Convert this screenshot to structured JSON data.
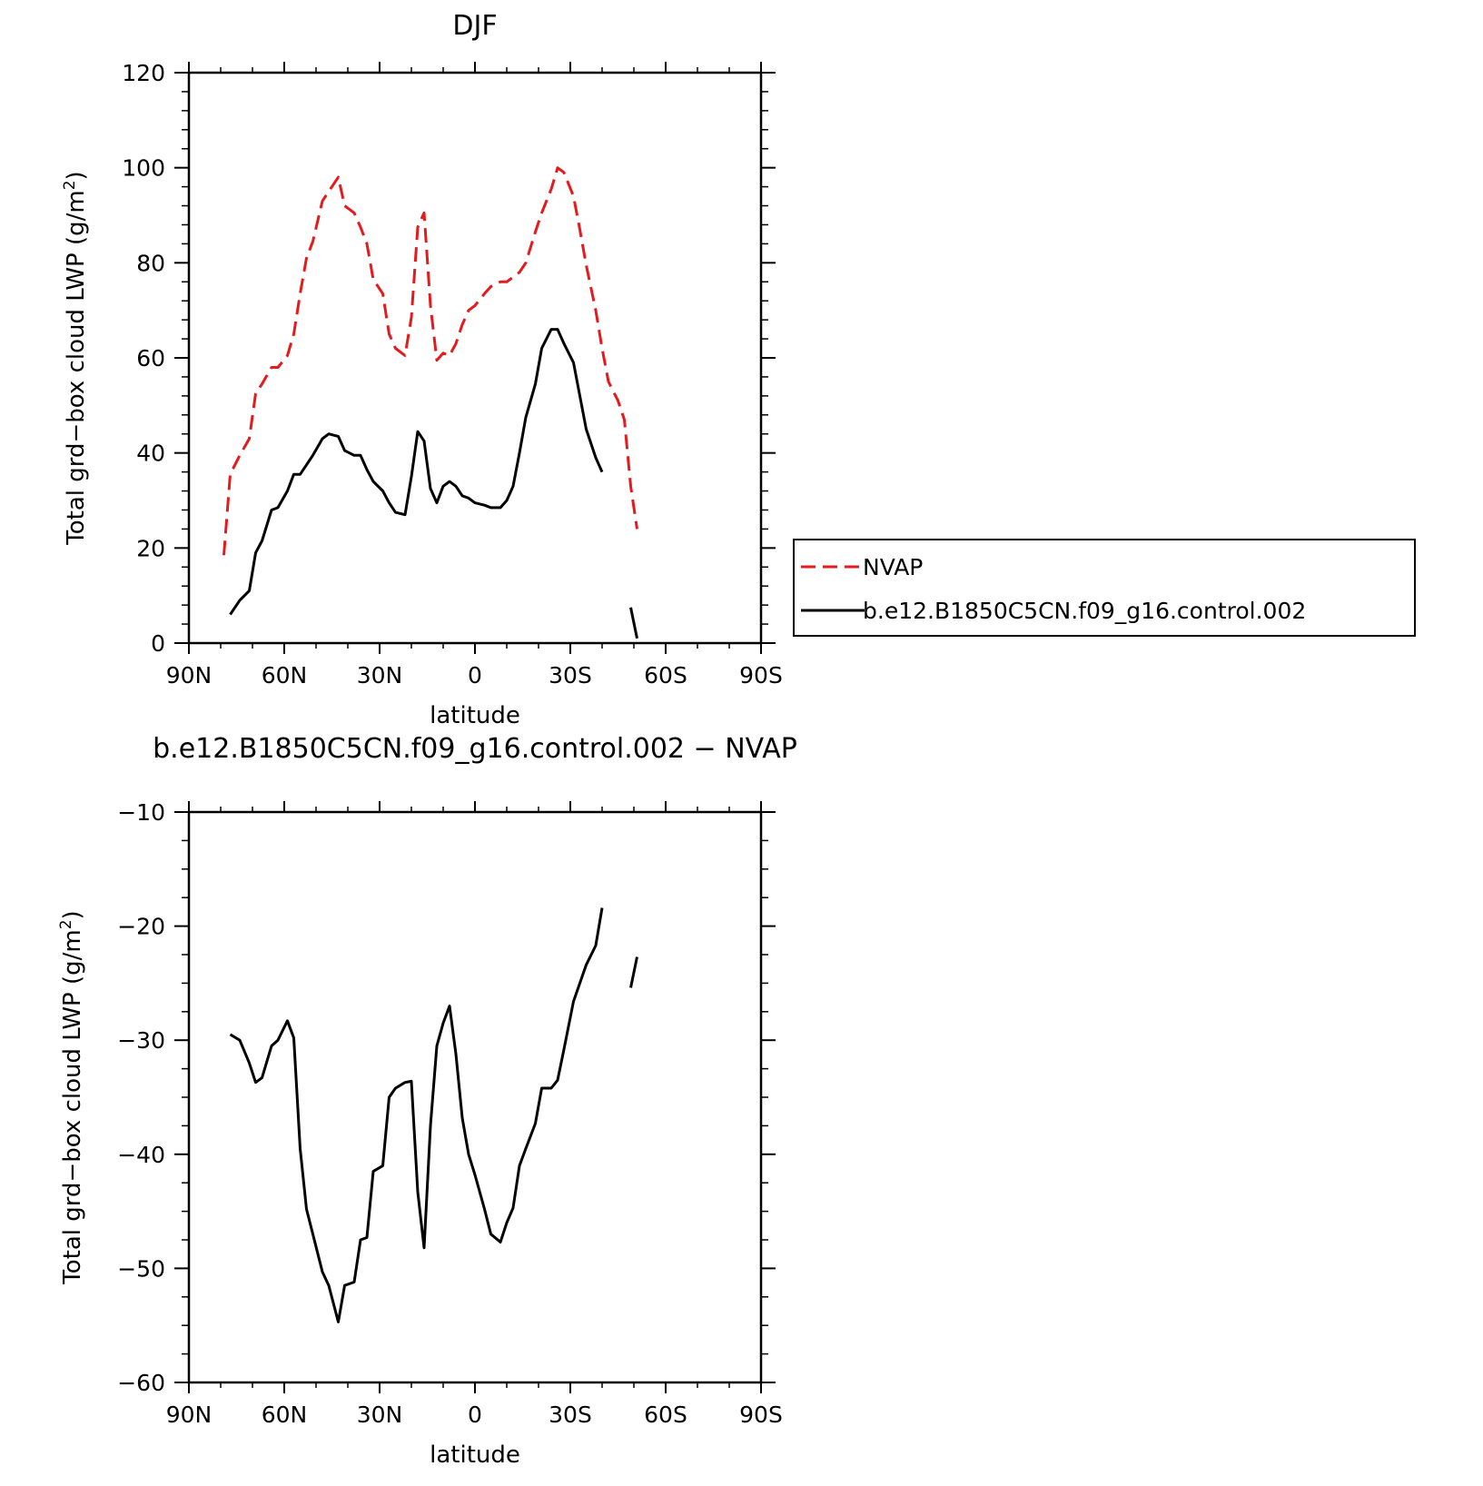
{
  "chart_data": [
    {
      "type": "line",
      "title": "DJF",
      "xlabel": "latitude",
      "ylabel": "Total grd−box cloud LWP (g/m",
      "ylabel_sup": "2",
      "ylabel_tail": ")",
      "xlim": [
        90,
        -90
      ],
      "ylim": [
        0,
        120
      ],
      "yticks": [
        {
          "value": 0,
          "label": "0"
        },
        {
          "value": 20,
          "label": "20"
        },
        {
          "value": 40,
          "label": "40"
        },
        {
          "value": 60,
          "label": "60"
        },
        {
          "value": 80,
          "label": "80"
        },
        {
          "value": 100,
          "label": "100"
        },
        {
          "value": 120,
          "label": "120"
        }
      ],
      "xticks": [
        {
          "value": 90,
          "label": "90N"
        },
        {
          "value": 60,
          "label": "60N"
        },
        {
          "value": 30,
          "label": "30N"
        },
        {
          "value": 0,
          "label": "0"
        },
        {
          "value": -30,
          "label": "30S"
        },
        {
          "value": -60,
          "label": "60S"
        },
        {
          "value": -90,
          "label": "90S"
        }
      ],
      "legend": [
        {
          "name": "NVAP",
          "color": "#e41a1c",
          "dash": true
        },
        {
          "name": "b.e12.B1850C5CN.f09_g16.control.002",
          "color": "#000000",
          "dash": false
        }
      ],
      "series": [
        {
          "name": "NVAP",
          "color": "#e41a1c",
          "dash": true,
          "segments": [
            [
              [
                79,
                18.5
              ],
              [
                77,
                35.5
              ],
              [
                74,
                39.5
              ],
              [
                71,
                43
              ],
              [
                69,
                52.5
              ],
              [
                67,
                54.5
              ],
              [
                64,
                58
              ],
              [
                62,
                58
              ],
              [
                59,
                60.5
              ],
              [
                57,
                65
              ],
              [
                55,
                73.5
              ],
              [
                53,
                81
              ],
              [
                51,
                84.5
              ],
              [
                48,
                93
              ],
              [
                46,
                95
              ],
              [
                43,
                98
              ],
              [
                41,
                92
              ],
              [
                38,
                90.5
              ],
              [
                36,
                87.5
              ],
              [
                34,
                84
              ],
              [
                32,
                76.5
              ],
              [
                29,
                73.5
              ],
              [
                27,
                65
              ],
              [
                25,
                62
              ],
              [
                22,
                60.5
              ],
              [
                20,
                68.5
              ],
              [
                18,
                87.5
              ],
              [
                16,
                90.5
              ],
              [
                14,
                71
              ],
              [
                12,
                59.5
              ],
              [
                10,
                61
              ],
              [
                8,
                60.5
              ],
              [
                6,
                63
              ],
              [
                4,
                67
              ],
              [
                2,
                70
              ],
              [
                0,
                71
              ],
              [
                -3,
                73.5
              ],
              [
                -5,
                75
              ],
              [
                -8,
                76
              ],
              [
                -10,
                76
              ],
              [
                -12,
                77
              ],
              [
                -14,
                78
              ],
              [
                -16,
                80
              ],
              [
                -19,
                86.5
              ],
              [
                -21,
                90.5
              ],
              [
                -24,
                95.5
              ],
              [
                -26,
                100
              ],
              [
                -28,
                99
              ],
              [
                -31,
                94
              ],
              [
                -33,
                87
              ],
              [
                -35,
                79.5
              ],
              [
                -38,
                70
              ],
              [
                -40,
                62
              ],
              [
                -42,
                55
              ],
              [
                -45,
                51
              ],
              [
                -47,
                47
              ],
              [
                -49,
                33
              ],
              [
                -51,
                24
              ]
            ]
          ]
        },
        {
          "name": "b.e12.B1850C5CN.f09_g16.control.002",
          "color": "#000000",
          "dash": false,
          "segments": [
            [
              [
                77,
                6
              ],
              [
                74,
                9
              ],
              [
                71,
                11
              ],
              [
                69,
                19
              ],
              [
                67,
                21.5
              ],
              [
                64,
                28
              ],
              [
                62,
                28.5
              ],
              [
                59,
                32
              ],
              [
                57,
                35.5
              ],
              [
                55,
                35.5
              ],
              [
                53,
                37.5
              ],
              [
                51,
                39.5
              ],
              [
                48,
                43
              ],
              [
                46,
                44
              ],
              [
                43,
                43.5
              ],
              [
                41,
                40.5
              ],
              [
                38,
                39.5
              ],
              [
                36,
                39.5
              ],
              [
                34,
                36.5
              ],
              [
                32,
                34
              ],
              [
                29,
                32
              ],
              [
                27,
                29.5
              ],
              [
                25,
                27.5
              ],
              [
                22,
                27
              ],
              [
                20,
                35
              ],
              [
                18,
                44.5
              ],
              [
                16,
                42.5
              ],
              [
                14,
                32.5
              ],
              [
                12,
                29.5
              ],
              [
                10,
                33
              ],
              [
                8,
                34
              ],
              [
                6,
                33
              ],
              [
                4,
                31
              ],
              [
                2,
                30.5
              ],
              [
                0,
                29.5
              ],
              [
                -3,
                29
              ],
              [
                -5,
                28.5
              ],
              [
                -8,
                28.5
              ],
              [
                -10,
                30
              ],
              [
                -12,
                33
              ],
              [
                -14,
                40
              ],
              [
                -16,
                47.5
              ],
              [
                -19,
                54.5
              ],
              [
                -21,
                62
              ],
              [
                -24,
                66
              ],
              [
                -26,
                66
              ],
              [
                -28,
                63
              ],
              [
                -31,
                59
              ],
              [
                -33,
                52
              ],
              [
                -35,
                45
              ],
              [
                -38,
                39
              ],
              [
                -40,
                36
              ]
            ],
            [
              [
                -49,
                7.5
              ],
              [
                -51,
                1
              ]
            ]
          ]
        }
      ]
    },
    {
      "type": "line",
      "title": "b.e12.B1850C5CN.f09_g16.control.002 − NVAP",
      "xlabel": "latitude",
      "ylabel": "Total grd−box cloud LWP (g/m",
      "ylabel_sup": "2",
      "ylabel_tail": ")",
      "xlim": [
        90,
        -90
      ],
      "ylim": [
        -60,
        -10
      ],
      "yticks": [
        {
          "value": -60,
          "label": "−60"
        },
        {
          "value": -50,
          "label": "−50"
        },
        {
          "value": -40,
          "label": "−40"
        },
        {
          "value": -30,
          "label": "−30"
        },
        {
          "value": -20,
          "label": "−20"
        },
        {
          "value": -10,
          "label": "−10"
        }
      ],
      "xticks": [
        {
          "value": 90,
          "label": "90N"
        },
        {
          "value": 60,
          "label": "60N"
        },
        {
          "value": 30,
          "label": "30N"
        },
        {
          "value": 0,
          "label": "0"
        },
        {
          "value": -30,
          "label": "30S"
        },
        {
          "value": -60,
          "label": "60S"
        },
        {
          "value": -90,
          "label": "90S"
        }
      ],
      "legend": [],
      "series": [
        {
          "name": "",
          "color": "#000000",
          "dash": false,
          "segments": [
            [
              [
                77,
                -29.5
              ],
              [
                74,
                -30
              ],
              [
                71,
                -32
              ],
              [
                69,
                -33.7
              ],
              [
                67,
                -33.3
              ],
              [
                64,
                -30.5
              ],
              [
                62,
                -30
              ],
              [
                59,
                -28.3
              ],
              [
                57,
                -29.8
              ],
              [
                55,
                -39.5
              ],
              [
                53,
                -44.8
              ],
              [
                51,
                -47
              ],
              [
                48,
                -50.3
              ],
              [
                46,
                -51.5
              ],
              [
                43,
                -54.7
              ],
              [
                41,
                -51.5
              ],
              [
                38,
                -51.2
              ],
              [
                36,
                -47.5
              ],
              [
                34,
                -47.3
              ],
              [
                32,
                -41.5
              ],
              [
                29,
                -41
              ],
              [
                27,
                -35
              ],
              [
                25,
                -34.2
              ],
              [
                22,
                -33.7
              ],
              [
                20,
                -33.6
              ],
              [
                18,
                -43.3
              ],
              [
                16,
                -48.2
              ],
              [
                14,
                -37.5
              ],
              [
                12,
                -30.5
              ],
              [
                10,
                -28.5
              ],
              [
                8,
                -27
              ],
              [
                6,
                -31.2
              ],
              [
                4,
                -36.8
              ],
              [
                2,
                -40
              ],
              [
                0,
                -41.8
              ],
              [
                -3,
                -44.8
              ],
              [
                -5,
                -47
              ],
              [
                -8,
                -47.7
              ],
              [
                -10,
                -46
              ],
              [
                -12,
                -44.7
              ],
              [
                -14,
                -41
              ],
              [
                -16,
                -39.5
              ],
              [
                -19,
                -37.3
              ],
              [
                -21,
                -34.2
              ],
              [
                -24,
                -34.2
              ],
              [
                -26,
                -33.5
              ],
              [
                -28,
                -30.8
              ],
              [
                -31,
                -26.6
              ],
              [
                -33,
                -25
              ],
              [
                -35,
                -23.4
              ],
              [
                -38,
                -21.7
              ],
              [
                -40,
                -18.4
              ]
            ],
            [
              [
                -49,
                -25.4
              ],
              [
                -51,
                -22.7
              ]
            ]
          ]
        }
      ]
    }
  ]
}
